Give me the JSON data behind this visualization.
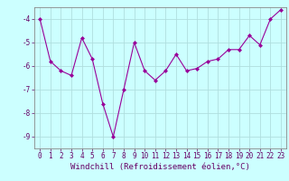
{
  "x": [
    0,
    1,
    2,
    3,
    4,
    5,
    6,
    7,
    8,
    9,
    10,
    11,
    12,
    13,
    14,
    15,
    16,
    17,
    18,
    19,
    20,
    21,
    22,
    23
  ],
  "y": [
    -4.0,
    -5.8,
    -6.2,
    -6.4,
    -4.8,
    -5.7,
    -7.6,
    -9.0,
    -7.0,
    -5.0,
    -6.2,
    -6.6,
    -6.2,
    -5.5,
    -6.2,
    -6.1,
    -5.8,
    -5.7,
    -5.3,
    -5.3,
    -4.7,
    -5.1,
    -4.0,
    -3.6
  ],
  "line_color": "#990099",
  "marker": "D",
  "marker_size": 2,
  "bg_color": "#ccffff",
  "grid_color": "#b0dede",
  "xlabel": "Windchill (Refroidissement éolien,°C)",
  "ylim": [
    -9.5,
    -3.5
  ],
  "xlim": [
    -0.5,
    23.5
  ],
  "yticks": [
    -9,
    -8,
    -7,
    -6,
    -5,
    -4
  ],
  "xticks": [
    0,
    1,
    2,
    3,
    4,
    5,
    6,
    7,
    8,
    9,
    10,
    11,
    12,
    13,
    14,
    15,
    16,
    17,
    18,
    19,
    20,
    21,
    22,
    23
  ],
  "tick_label_fontsize": 5.5,
  "xlabel_fontsize": 6.5
}
